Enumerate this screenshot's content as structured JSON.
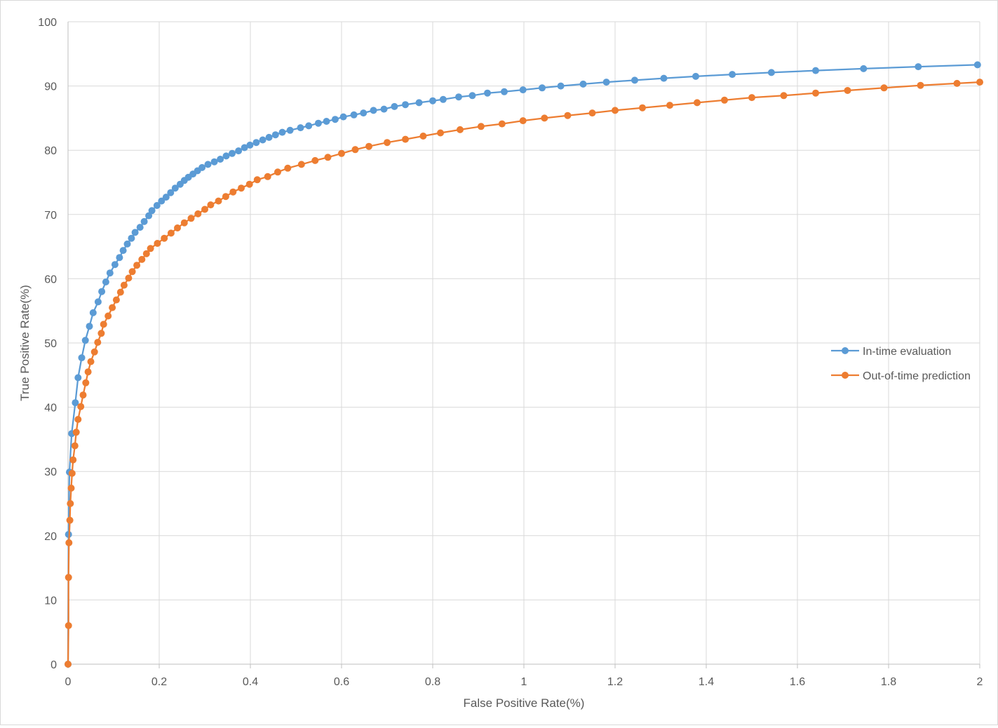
{
  "chart_data": {
    "type": "scatter",
    "title": "",
    "xlabel": "False Positive Rate(%)",
    "ylabel": "True Positive Rate(%)",
    "xlim": [
      0,
      2
    ],
    "ylim": [
      0,
      100
    ],
    "x_ticks": [
      "0",
      "0.2",
      "0.4",
      "0.6",
      "0.8",
      "1",
      "1.2",
      "1.4",
      "1.6",
      "1.8",
      "2"
    ],
    "y_ticks": [
      "0",
      "10",
      "20",
      "30",
      "40",
      "50",
      "60",
      "70",
      "80",
      "90",
      "100"
    ],
    "grid": true,
    "legend_position": "right",
    "series": [
      {
        "name": "In-time evaluation",
        "color": "#5B9BD5",
        "points": [
          [
            0,
            0
          ],
          [
            0.001,
            20.2
          ],
          [
            0.003,
            29.9
          ],
          [
            0.008,
            35.9
          ],
          [
            0.016,
            40.7
          ],
          [
            0.022,
            44.6
          ],
          [
            0.03,
            47.7
          ],
          [
            0.038,
            50.4
          ],
          [
            0.047,
            52.6
          ],
          [
            0.055,
            54.7
          ],
          [
            0.066,
            56.4
          ],
          [
            0.074,
            58.0
          ],
          [
            0.083,
            59.5
          ],
          [
            0.092,
            60.9
          ],
          [
            0.103,
            62.2
          ],
          [
            0.113,
            63.3
          ],
          [
            0.121,
            64.4
          ],
          [
            0.13,
            65.4
          ],
          [
            0.139,
            66.3
          ],
          [
            0.147,
            67.2
          ],
          [
            0.158,
            68.0
          ],
          [
            0.167,
            68.9
          ],
          [
            0.177,
            69.8
          ],
          [
            0.184,
            70.6
          ],
          [
            0.195,
            71.4
          ],
          [
            0.205,
            72.1
          ],
          [
            0.215,
            72.7
          ],
          [
            0.225,
            73.4
          ],
          [
            0.235,
            74.1
          ],
          [
            0.246,
            74.7
          ],
          [
            0.255,
            75.3
          ],
          [
            0.264,
            75.8
          ],
          [
            0.274,
            76.3
          ],
          [
            0.284,
            76.8
          ],
          [
            0.294,
            77.3
          ],
          [
            0.307,
            77.8
          ],
          [
            0.321,
            78.2
          ],
          [
            0.334,
            78.6
          ],
          [
            0.347,
            79.1
          ],
          [
            0.36,
            79.5
          ],
          [
            0.374,
            79.9
          ],
          [
            0.387,
            80.4
          ],
          [
            0.399,
            80.8
          ],
          [
            0.413,
            81.2
          ],
          [
            0.427,
            81.6
          ],
          [
            0.441,
            82.0
          ],
          [
            0.455,
            82.4
          ],
          [
            0.47,
            82.8
          ],
          [
            0.487,
            83.1
          ],
          [
            0.51,
            83.5
          ],
          [
            0.528,
            83.8
          ],
          [
            0.549,
            84.2
          ],
          [
            0.567,
            84.5
          ],
          [
            0.586,
            84.8
          ],
          [
            0.604,
            85.2
          ],
          [
            0.627,
            85.5
          ],
          [
            0.648,
            85.8
          ],
          [
            0.67,
            86.2
          ],
          [
            0.693,
            86.4
          ],
          [
            0.716,
            86.8
          ],
          [
            0.74,
            87.1
          ],
          [
            0.77,
            87.4
          ],
          [
            0.8,
            87.7
          ],
          [
            0.823,
            87.9
          ],
          [
            0.857,
            88.3
          ],
          [
            0.887,
            88.5
          ],
          [
            0.92,
            88.9
          ],
          [
            0.957,
            89.1
          ],
          [
            0.998,
            89.4
          ],
          [
            1.04,
            89.7
          ],
          [
            1.081,
            90.0
          ],
          [
            1.13,
            90.3
          ],
          [
            1.181,
            90.6
          ],
          [
            1.243,
            90.9
          ],
          [
            1.307,
            91.2
          ],
          [
            1.377,
            91.5
          ],
          [
            1.457,
            91.8
          ],
          [
            1.543,
            92.1
          ],
          [
            1.64,
            92.4
          ],
          [
            1.745,
            92.7
          ],
          [
            1.865,
            93.0
          ],
          [
            1.995,
            93.3
          ]
        ]
      },
      {
        "name": "Out-of-time prediction",
        "color": "#ED7D31",
        "points": [
          [
            0,
            0
          ],
          [
            0.001,
            6.0
          ],
          [
            0.001,
            13.5
          ],
          [
            0.002,
            18.9
          ],
          [
            0.004,
            22.4
          ],
          [
            0.005,
            25.0
          ],
          [
            0.007,
            27.4
          ],
          [
            0.009,
            29.7
          ],
          [
            0.011,
            31.8
          ],
          [
            0.015,
            34.0
          ],
          [
            0.018,
            36.1
          ],
          [
            0.022,
            38.1
          ],
          [
            0.028,
            40.1
          ],
          [
            0.033,
            41.9
          ],
          [
            0.039,
            43.8
          ],
          [
            0.044,
            45.5
          ],
          [
            0.05,
            47.1
          ],
          [
            0.058,
            48.6
          ],
          [
            0.065,
            50.1
          ],
          [
            0.073,
            51.5
          ],
          [
            0.078,
            52.9
          ],
          [
            0.088,
            54.2
          ],
          [
            0.097,
            55.5
          ],
          [
            0.106,
            56.7
          ],
          [
            0.115,
            57.9
          ],
          [
            0.123,
            59.0
          ],
          [
            0.133,
            60.1
          ],
          [
            0.141,
            61.1
          ],
          [
            0.151,
            62.1
          ],
          [
            0.162,
            63.0
          ],
          [
            0.172,
            63.9
          ],
          [
            0.181,
            64.7
          ],
          [
            0.196,
            65.5
          ],
          [
            0.211,
            66.3
          ],
          [
            0.226,
            67.1
          ],
          [
            0.24,
            67.9
          ],
          [
            0.255,
            68.7
          ],
          [
            0.27,
            69.4
          ],
          [
            0.285,
            70.1
          ],
          [
            0.3,
            70.8
          ],
          [
            0.313,
            71.5
          ],
          [
            0.33,
            72.1
          ],
          [
            0.346,
            72.8
          ],
          [
            0.362,
            73.5
          ],
          [
            0.38,
            74.1
          ],
          [
            0.398,
            74.7
          ],
          [
            0.415,
            75.4
          ],
          [
            0.438,
            75.9
          ],
          [
            0.46,
            76.6
          ],
          [
            0.482,
            77.2
          ],
          [
            0.512,
            77.8
          ],
          [
            0.542,
            78.4
          ],
          [
            0.57,
            78.9
          ],
          [
            0.6,
            79.5
          ],
          [
            0.63,
            80.1
          ],
          [
            0.66,
            80.6
          ],
          [
            0.7,
            81.2
          ],
          [
            0.74,
            81.7
          ],
          [
            0.779,
            82.2
          ],
          [
            0.817,
            82.7
          ],
          [
            0.86,
            83.2
          ],
          [
            0.906,
            83.7
          ],
          [
            0.952,
            84.1
          ],
          [
            0.998,
            84.6
          ],
          [
            1.045,
            85.0
          ],
          [
            1.096,
            85.4
          ],
          [
            1.15,
            85.8
          ],
          [
            1.2,
            86.2
          ],
          [
            1.26,
            86.6
          ],
          [
            1.32,
            87.0
          ],
          [
            1.38,
            87.4
          ],
          [
            1.44,
            87.8
          ],
          [
            1.5,
            88.2
          ],
          [
            1.57,
            88.5
          ],
          [
            1.64,
            88.9
          ],
          [
            1.71,
            89.3
          ],
          [
            1.79,
            89.7
          ],
          [
            1.87,
            90.1
          ],
          [
            1.95,
            90.4
          ],
          [
            2.0,
            90.6
          ]
        ]
      }
    ]
  }
}
